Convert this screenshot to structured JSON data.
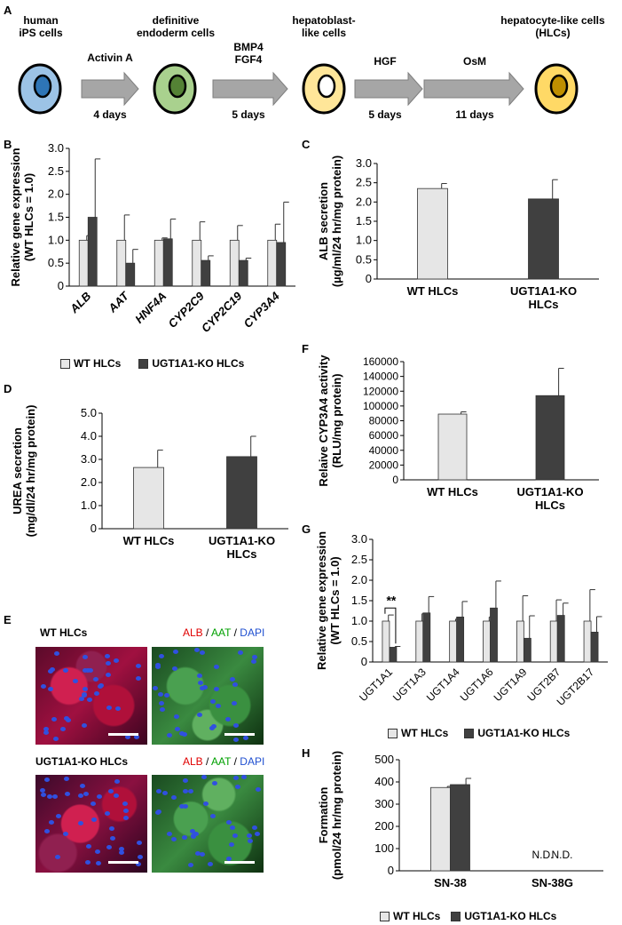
{
  "panel_letters": {
    "a": "A",
    "b": "B",
    "c": "C",
    "d": "D",
    "e": "E",
    "f": "F",
    "g": "G",
    "h": "H"
  },
  "scheme": {
    "stages": [
      {
        "label": "human\niPS cells",
        "fill": "#9cc3e6",
        "nucleus": "#2e75b6"
      },
      {
        "label": "definitive\nendoderm cells",
        "fill": "#a9d18e",
        "nucleus": "#548235"
      },
      {
        "label": "hepatoblast-\nlike cells",
        "fill": "#ffe699",
        "nucleus": "#ffffff"
      },
      {
        "label": "hepatocyte-like cells\n(HLCs)",
        "fill": "#ffd966",
        "nucleus": "#bf8f00"
      }
    ],
    "arrows": [
      {
        "top": "Activin A",
        "bottom": "4 days"
      },
      {
        "top": "BMP4\nFGF4",
        "bottom": "5 days"
      },
      {
        "top": "HGF",
        "bottom": "5 days"
      },
      {
        "top": "OsM",
        "bottom": "11 days"
      }
    ]
  },
  "legend": {
    "wt": "WT HLCs",
    "ko": "UGT1A1-KO HLCs"
  },
  "colors": {
    "wt": "#e6e6e6",
    "ko": "#404040"
  },
  "chart_data": [
    {
      "panel": "B",
      "type": "bar",
      "ylabel": "Relative gene expression\n(WT HLCs = 1.0)",
      "categories": [
        "ALB",
        "AAT",
        "HNF4A",
        "CYP2C9",
        "CYP2C19",
        "CYP3A4"
      ],
      "series": [
        {
          "name": "WT HLCs",
          "values": [
            1.0,
            1.0,
            1.0,
            1.0,
            1.0,
            1.0
          ],
          "errors": [
            0.1,
            0.55,
            0.05,
            0.4,
            0.32,
            0.35
          ]
        },
        {
          "name": "UGT1A1-KO HLCs",
          "values": [
            1.5,
            0.5,
            1.03,
            0.56,
            0.56,
            0.95
          ],
          "errors": [
            1.27,
            0.3,
            0.43,
            0.1,
            0.05,
            0.88
          ]
        }
      ],
      "ylim": [
        0,
        3.0
      ],
      "yticks": [
        "0",
        "0.5",
        "1.0",
        "1.5",
        "2.0",
        "2.5",
        "3.0"
      ]
    },
    {
      "panel": "C",
      "type": "bar",
      "ylabel": "ALB secretion\n(µg/ml/24 hr/mg protein)",
      "categories": [
        "WT HLCs",
        "UGT1A1-KO\nHLCs"
      ],
      "values": [
        2.35,
        2.08
      ],
      "errors": [
        0.13,
        0.5
      ],
      "ylim": [
        0,
        3.0
      ],
      "yticks": [
        "0",
        "0.5",
        "1.0",
        "1.5",
        "2.0",
        "2.5",
        "3.0"
      ]
    },
    {
      "panel": "D",
      "type": "bar",
      "ylabel": "UREA secretion\n(mg/dl/24 hr/mg protein)",
      "categories": [
        "WT HLCs",
        "UGT1A1-KO\nHLCs"
      ],
      "values": [
        2.65,
        3.12
      ],
      "errors": [
        0.75,
        0.88
      ],
      "ylim": [
        0,
        5.0
      ],
      "yticks": [
        "0",
        "1.0",
        "2.0",
        "3.0",
        "4.0",
        "5.0"
      ]
    },
    {
      "panel": "F",
      "type": "bar",
      "ylabel": "Relaive CYP3A4 activity\n(RLU/mg protein)",
      "categories": [
        "WT HLCs",
        "UGT1A1-KO\nHLCs"
      ],
      "values": [
        89000,
        114000
      ],
      "errors": [
        3000,
        37000
      ],
      "ylim": [
        0,
        160000
      ],
      "yticks": [
        "0",
        "20000",
        "40000",
        "60000",
        "80000",
        "100000",
        "120000",
        "140000",
        "160000"
      ]
    },
    {
      "panel": "G",
      "type": "bar",
      "ylabel": "Relative gene expression\n(WT HLCs = 1.0)",
      "categories": [
        "UGT1A1",
        "UGT1A3",
        "UGT1A4",
        "UGT1A6",
        "UGT1A9",
        "UGT2B7",
        "UGT2B17"
      ],
      "series": [
        {
          "name": "WT HLCs",
          "values": [
            1.0,
            1.0,
            1.0,
            1.0,
            1.0,
            1.0,
            1.0
          ],
          "errors": [
            0.15,
            0.18,
            0.05,
            0.1,
            0.62,
            0.52,
            0.77
          ]
        },
        {
          "name": "UGT1A1-KO HLCs",
          "values": [
            0.36,
            1.2,
            1.1,
            1.32,
            0.58,
            1.14,
            0.73
          ],
          "errors": [
            0.02,
            0.4,
            0.38,
            0.66,
            0.55,
            0.3,
            0.38
          ]
        }
      ],
      "ylim": [
        0,
        3.0
      ],
      "yticks": [
        "0",
        "0.5",
        "1.0",
        "1.5",
        "2.0",
        "2.5",
        "3.0"
      ],
      "annotation": "**"
    },
    {
      "panel": "H",
      "type": "bar",
      "ylabel": "Formation\n(pmol/24 hr/mg protein)",
      "categories": [
        "SN-38",
        "SN-38G"
      ],
      "series": [
        {
          "name": "WT HLCs",
          "values": [
            375,
            null
          ],
          "errors": [
            5,
            null
          ]
        },
        {
          "name": "UGT1A1-KO HLCs",
          "values": [
            388,
            null
          ],
          "errors": [
            28,
            null
          ]
        }
      ],
      "ylim": [
        0,
        500
      ],
      "yticks": [
        "0",
        "100",
        "200",
        "300",
        "400",
        "500"
      ],
      "nd_label": "N.D."
    }
  ],
  "micrographs": {
    "wt_title": "WT HLCs",
    "ko_title": "UGT1A1-KO HLCs",
    "stain": {
      "alb": "ALB",
      "sep1": " / ",
      "aat": "AAT",
      "sep2": " / ",
      "dapi": "DAPI"
    },
    "stain_colors": {
      "alb": "#e00000",
      "aat": "#00a000",
      "dapi": "#1f4fd0"
    }
  }
}
